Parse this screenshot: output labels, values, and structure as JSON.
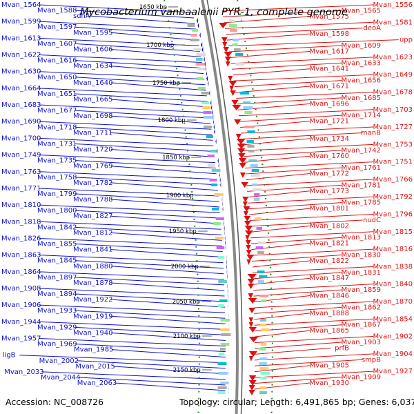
{
  "map": {
    "title": "Mycobacterium vanbaalenii PYR-1, complete genome",
    "accession": "Accession: NC_008726",
    "summary": "Topology: circular; Length: 6,491,865 bp; Genes: 6,037",
    "colors": {
      "left_strand": "#1010cc",
      "right_strand": "#dd1111",
      "backbone": "#888888",
      "tick_dash": "#228822"
    }
  },
  "ticks": [
    "1650 kbp",
    "1700 kbp",
    "1750 kbp",
    "1800 kbp",
    "1850 kbp",
    "1900 kbp",
    "1950 kbp",
    "2000 kbp",
    "2050 kbp",
    "2100 kbp",
    "2150 kbp"
  ],
  "left_labels": [
    "Mvan_1564",
    "Mvan_1588",
    "sdhA",
    "Mvan_1599",
    "Mvan_1597",
    "Mvan_1595",
    "Mvan_1613",
    "Mvan_1607",
    "Mvan_1606",
    "Mvan_1622",
    "Mvan_1616",
    "Mvan_1634",
    "Mvan_1630",
    "Mvan_1650",
    "Mvan_1640",
    "Mvan_1664",
    "Mvan_1651",
    "Mvan_1665",
    "Mvan_1683",
    "Mvan_1677",
    "Mvan_1698",
    "Mvan_1690",
    "Mvan_1718",
    "Mvan_1711",
    "Mvan_1700",
    "Mvan_1731",
    "Mvan_1720",
    "Mvan_1749",
    "Mvan_1735",
    "Mvan_1769",
    "Mvan_1763",
    "Mvan_1758",
    "Mvan_1782",
    "Mvan_1771",
    "Mvan_1799",
    "Mvan_1788",
    "Mvan_1810",
    "Mvan_1800",
    "Mvan_1827",
    "Mvan_1818",
    "Mvan_1842",
    "Mvan_1812",
    "Mvan_1826",
    "Mvan_1855",
    "Mvan_1841",
    "Mvan_1863",
    "Mvan_1845",
    "Mvan_1880",
    "Mvan_1864",
    "Mvan_1897",
    "Mvan_1878",
    "Mvan_1908",
    "Mvan_1894",
    "Mvan_1922",
    "Mvan_1906",
    "Mvan_1933",
    "Mvan_1919",
    "Mvan_1944",
    "Mvan_1929",
    "Mvan_1940",
    "Mvan_1957",
    "Mvan_1969",
    "Mvan_1985",
    "ligB",
    "Mvan_2002",
    "Mvan_2015",
    "Mvan_2033",
    "Mvan_2044",
    "Mvan_2063"
  ],
  "right_labels": [
    "Mvan_1556",
    "Mvan_1565",
    "Mvan_1575",
    "Mvan_1581",
    "deoA",
    "Mvan_1598",
    "upp",
    "Mvan_1609",
    "Mvan_1617",
    "Mvan_1623",
    "Mvan_1633",
    "Mvan_1641",
    "Mvan_1649",
    "Mvan_1656",
    "Mvan_1671",
    "Mvan_1678",
    "Mvan_1685",
    "Mvan_1696",
    "Mvan_1703",
    "Mvan_1714",
    "Mvan_1721",
    "Mvan_1727",
    "manB",
    "Mvan_1734",
    "Mvan_1753",
    "Mvan_1742",
    "Mvan_1760",
    "Mvan_1751",
    "Mvan_1761",
    "Mvan_1772",
    "Mvan_1766",
    "Mvan_1781",
    "Mvan_1773",
    "Mvan_1792",
    "Mvan_1785",
    "Mvan_1801",
    "Mvan_1796",
    "nudC",
    "Mvan_1802",
    "Mvan_1815",
    "Mvan_1813",
    "Mvan_1821",
    "Mvan_1816",
    "Mvan_1830",
    "Mvan_1822",
    "Mvan_1838",
    "Mvan_1831",
    "Mvan_1847",
    "Mvan_1840",
    "Mvan_1859",
    "Mvan_1846",
    "Mvan_1870",
    "Mvan_1862",
    "Mvan_1888",
    "Mvan_1854",
    "Mvan_1867",
    "Mvan_1865",
    "Mvan_1902",
    "Mvan_1903",
    "prfB",
    "Mvan_1904",
    "smpB",
    "Mvan_1905",
    "Mvan_1927",
    "Mvan_1909",
    "Mvan_1930"
  ]
}
